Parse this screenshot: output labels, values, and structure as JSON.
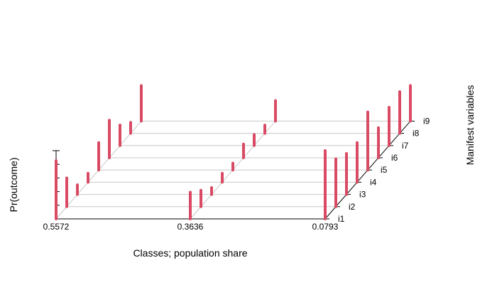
{
  "chart_data": {
    "type": "bar3d",
    "xlabel": "Classes; population share",
    "ylabel": "Pr(outcome)",
    "zlabel": "Manifest variables",
    "classes": [
      "0.5572",
      "0.3636",
      "0.0793"
    ],
    "variables": [
      "i1",
      "i2",
      "i3",
      "i4",
      "i5",
      "i6",
      "i7",
      "i8",
      "i9"
    ],
    "ylim": [
      0,
      1
    ],
    "grid": true,
    "bar_color": "#d94a64",
    "series": [
      {
        "name": "0.5572",
        "values": [
          0.85,
          0.42,
          0.14,
          0.13,
          0.4,
          0.55,
          0.3,
          0.16,
          0.52
        ]
      },
      {
        "name": "0.3636",
        "values": [
          0.39,
          0.24,
          0.1,
          0.13,
          0.1,
          0.2,
          0.16,
          0.12,
          0.3
        ]
      },
      {
        "name": "0.0793",
        "values": [
          1.0,
          0.7,
          0.6,
          0.58,
          0.85,
          0.44,
          0.56,
          0.61,
          0.52
        ]
      }
    ]
  }
}
